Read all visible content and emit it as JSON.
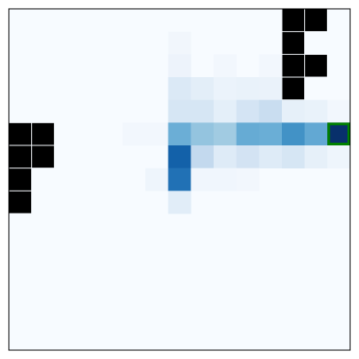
{
  "board": {
    "rows": 15,
    "cols": 15,
    "background": "#f7fbff",
    "border_color": "#000000",
    "wall_color": "#000000",
    "walls": [
      [
        0,
        12
      ],
      [
        0,
        13
      ],
      [
        1,
        12
      ],
      [
        2,
        12
      ],
      [
        2,
        13
      ],
      [
        3,
        12
      ],
      [
        5,
        0
      ],
      [
        5,
        1
      ],
      [
        6,
        0
      ],
      [
        6,
        1
      ],
      [
        7,
        0
      ],
      [
        8,
        0
      ]
    ],
    "heat_colors": [
      {
        "row": 1,
        "col": 7,
        "color": "#f1f6fc"
      },
      {
        "row": 2,
        "col": 7,
        "color": "#edf3fb"
      },
      {
        "row": 2,
        "col": 9,
        "color": "#f2f7fd"
      },
      {
        "row": 2,
        "col": 11,
        "color": "#f2f7fd"
      },
      {
        "row": 3,
        "col": 7,
        "color": "#dbe9f6"
      },
      {
        "row": 3,
        "col": 8,
        "color": "#e3eef8"
      },
      {
        "row": 3,
        "col": 9,
        "color": "#ebf3fb"
      },
      {
        "row": 3,
        "col": 10,
        "color": "#e9f2fa"
      },
      {
        "row": 3,
        "col": 11,
        "color": "#eaf2fa"
      },
      {
        "row": 4,
        "col": 7,
        "color": "#d6e6f4"
      },
      {
        "row": 4,
        "col": 8,
        "color": "#d6e6f4"
      },
      {
        "row": 4,
        "col": 9,
        "color": "#e4eff9"
      },
      {
        "row": 4,
        "col": 10,
        "color": "#d4e4f4"
      },
      {
        "row": 4,
        "col": 11,
        "color": "#c9ddf0"
      },
      {
        "row": 4,
        "col": 12,
        "color": "#e6f0f9"
      },
      {
        "row": 4,
        "col": 13,
        "color": "#e9f2fa"
      },
      {
        "row": 4,
        "col": 14,
        "color": "#f2f7fd"
      },
      {
        "row": 5,
        "col": 5,
        "color": "#f2f7fd"
      },
      {
        "row": 5,
        "col": 6,
        "color": "#f2f7fd"
      },
      {
        "row": 5,
        "col": 7,
        "color": "#6baed6"
      },
      {
        "row": 5,
        "col": 8,
        "color": "#94c4df"
      },
      {
        "row": 5,
        "col": 9,
        "color": "#a1cbe2"
      },
      {
        "row": 5,
        "col": 10,
        "color": "#66abd4"
      },
      {
        "row": 5,
        "col": 11,
        "color": "#6aaed6"
      },
      {
        "row": 5,
        "col": 12,
        "color": "#4292c6"
      },
      {
        "row": 5,
        "col": 13,
        "color": "#62a8d3"
      },
      {
        "row": 5,
        "col": 14,
        "color": "#08306b"
      },
      {
        "row": 6,
        "col": 7,
        "color": "#1361a9"
      },
      {
        "row": 6,
        "col": 8,
        "color": "#c3d9ee"
      },
      {
        "row": 6,
        "col": 9,
        "color": "#deebf7"
      },
      {
        "row": 6,
        "col": 10,
        "color": "#d3e3f3"
      },
      {
        "row": 6,
        "col": 11,
        "color": "#deebf7"
      },
      {
        "row": 6,
        "col": 12,
        "color": "#d6e6f4"
      },
      {
        "row": 6,
        "col": 13,
        "color": "#e6f0f9"
      },
      {
        "row": 6,
        "col": 14,
        "color": "#eef5fc"
      },
      {
        "row": 7,
        "col": 6,
        "color": "#eef5fc"
      },
      {
        "row": 7,
        "col": 7,
        "color": "#2171b5"
      },
      {
        "row": 7,
        "col": 8,
        "color": "#f0f6fd"
      },
      {
        "row": 7,
        "col": 9,
        "color": "#f0f6fd"
      },
      {
        "row": 7,
        "col": 10,
        "color": "#f2f7fd"
      },
      {
        "row": 8,
        "col": 7,
        "color": "#e1edf8"
      }
    ],
    "agent": {
      "row": 5,
      "col": 14,
      "outline_color": "#008000"
    }
  }
}
